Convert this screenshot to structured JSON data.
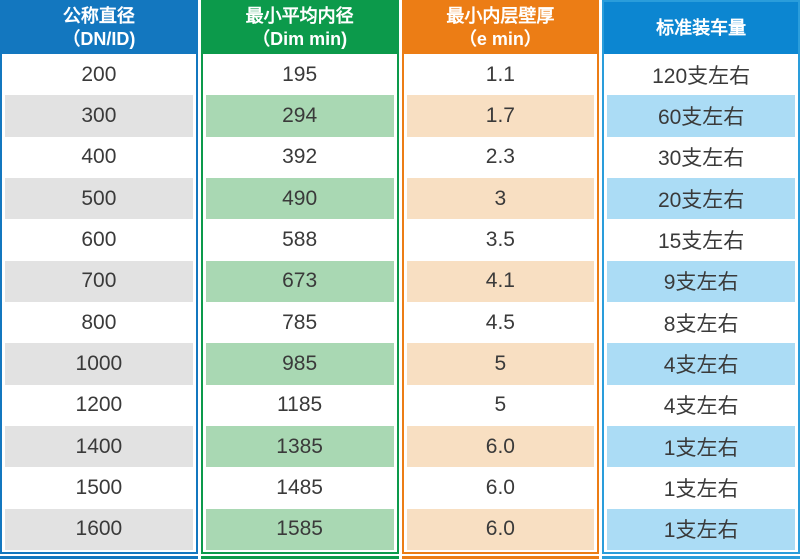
{
  "chart_data": {
    "type": "table",
    "columns": [
      {
        "id": "dn",
        "title_line1": "公称直径",
        "title_line2": "（DN/ID)",
        "header_bg": "#1377bf",
        "border_color": "#1377bf",
        "stripe_color": "#e2e2e2"
      },
      {
        "id": "dim-min",
        "title_line1": "最小平均内径",
        "title_line2": "（Dim min)",
        "header_bg": "#0c9a4b",
        "border_color": "#0c9a4b",
        "stripe_color": "#a9d8b3"
      },
      {
        "id": "e-min",
        "title_line1": "最小内层壁厚",
        "title_line2": "（e min）",
        "header_bg": "#ec7d15",
        "border_color": "#ec7d15",
        "stripe_color": "#f8dfc2"
      },
      {
        "id": "loading-qty",
        "title_line1": "标准装车量",
        "title_line2": "",
        "header_bg": "#0c86d1",
        "border_color": "#2a9ddb",
        "stripe_color": "#abdcf5"
      }
    ],
    "rows": [
      [
        "200",
        "195",
        "1.1",
        "120支左右"
      ],
      [
        "300",
        "294",
        "1.7",
        "60支左右"
      ],
      [
        "400",
        "392",
        "2.3",
        "30支左右"
      ],
      [
        "500",
        "490",
        "3",
        "20支左右"
      ],
      [
        "600",
        "588",
        "3.5",
        "15支左右"
      ],
      [
        "700",
        "673",
        "4.1",
        "9支左右"
      ],
      [
        "800",
        "785",
        "4.5",
        "8支左右"
      ],
      [
        "1000",
        "985",
        "5",
        "4支左右"
      ],
      [
        "1200",
        "1185",
        "5",
        "4支左右"
      ],
      [
        "1400",
        "1385",
        "6.0",
        "1支左右"
      ],
      [
        "1500",
        "1485",
        "6.0",
        "1支左右"
      ],
      [
        "1600",
        "1585",
        "6.0",
        "1支左右"
      ]
    ],
    "text_color": "#3a3a3a",
    "background": "#ffffff"
  }
}
